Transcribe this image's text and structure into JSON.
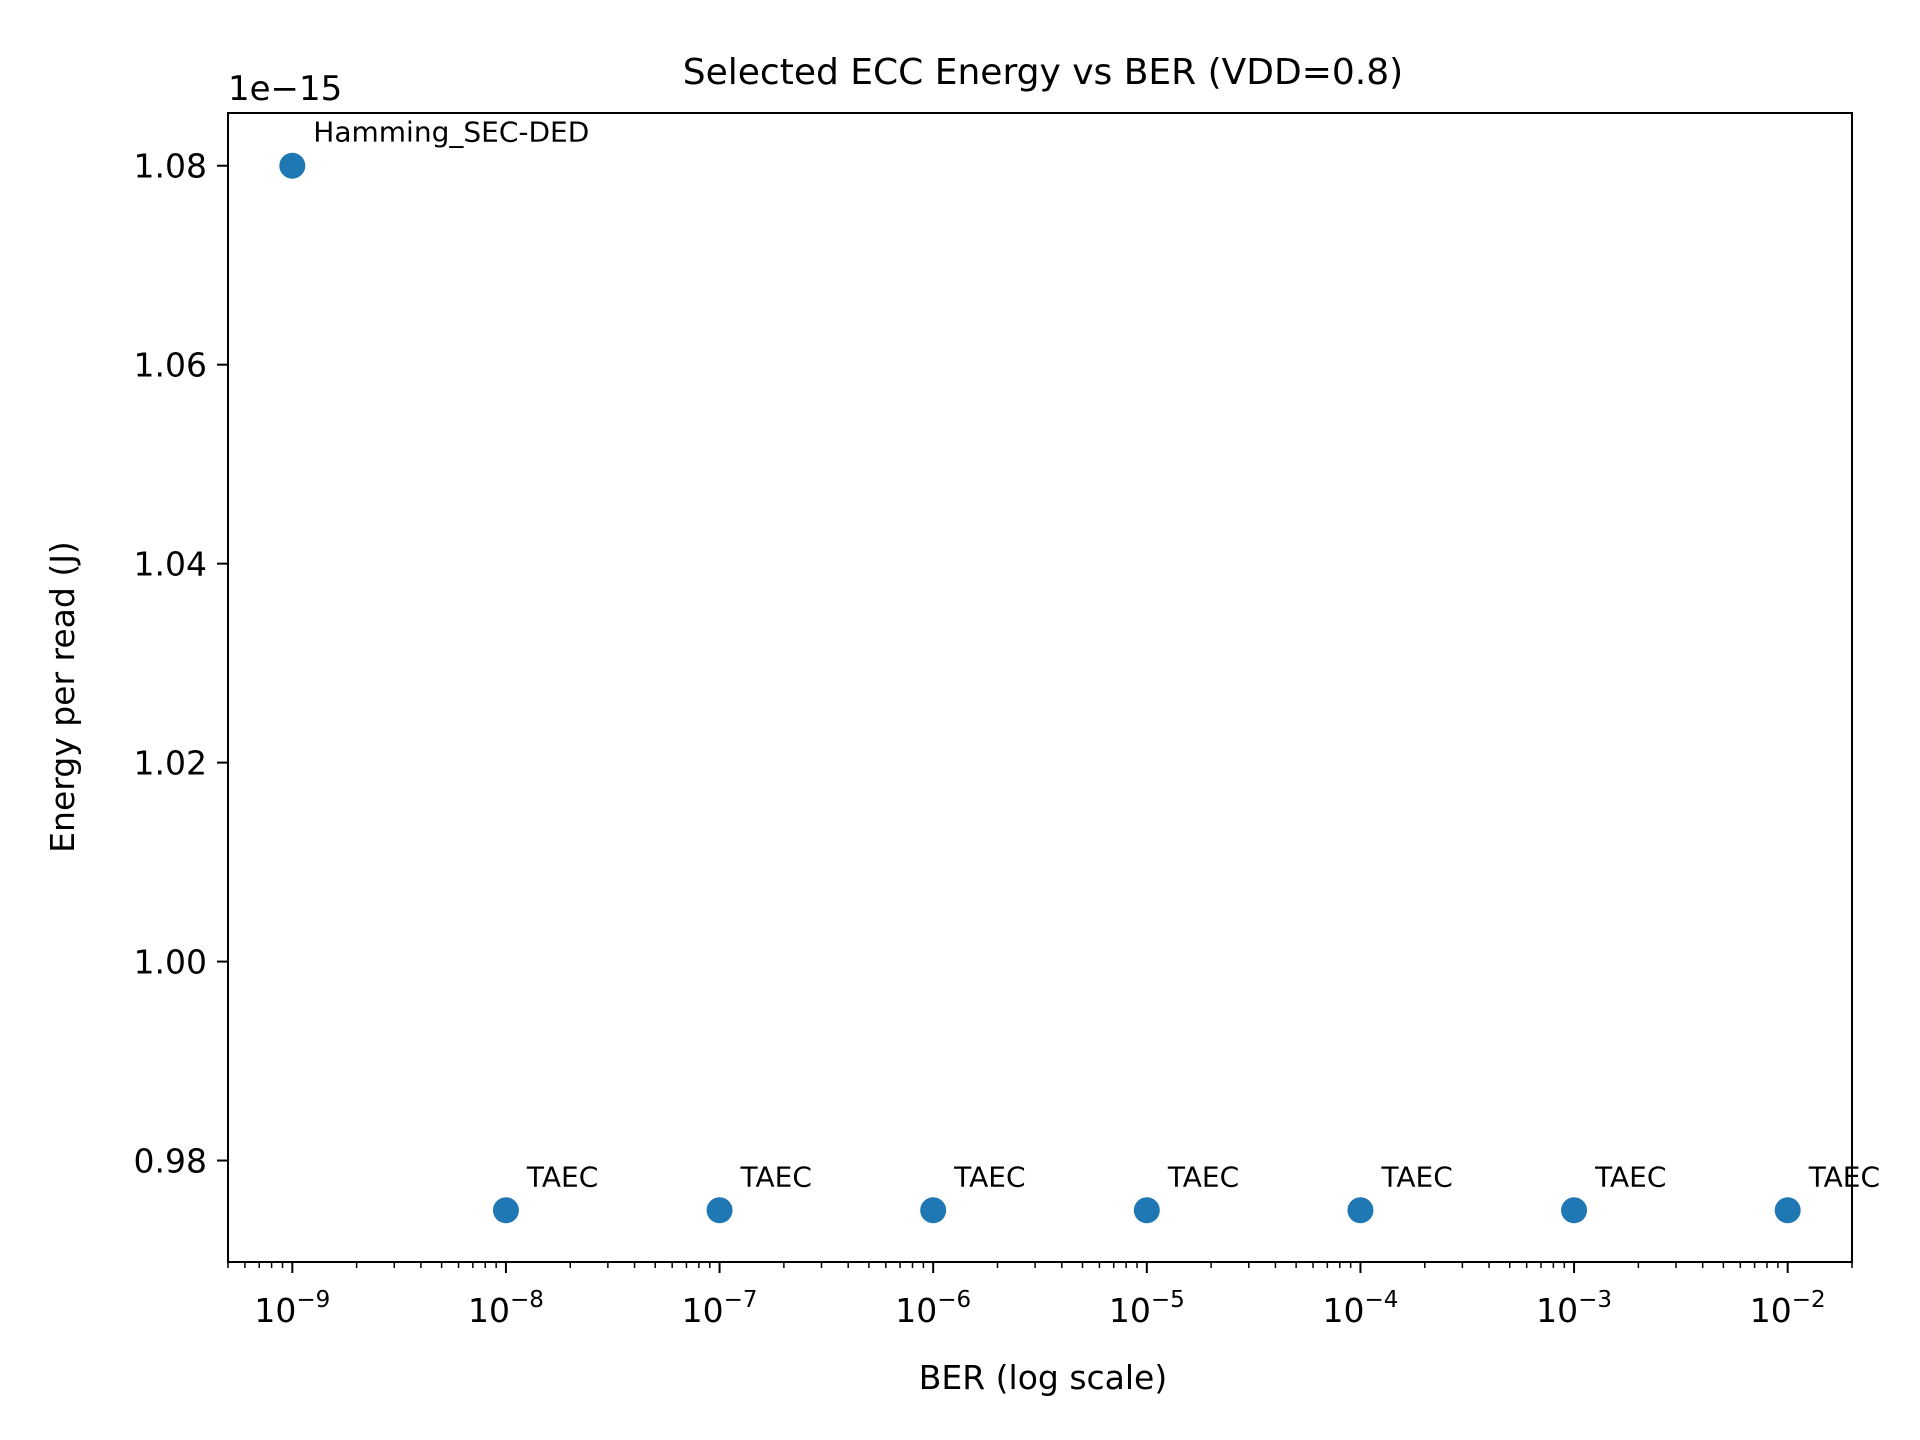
{
  "chart_data": {
    "type": "scatter",
    "title": "Selected ECC Energy vs BER (VDD=0.8)",
    "xlabel": "BER (log scale)",
    "ylabel": "Energy per read (J)",
    "xscale": "log",
    "xlim": [
      5e-10,
      0.02
    ],
    "ylim": [
      9.698e-16,
      1.0853e-15
    ],
    "x_ticks": [
      1e-09,
      1e-08,
      1e-07,
      1e-06,
      1e-05,
      0.0001,
      0.001,
      0.01
    ],
    "x_tick_labels": [
      {
        "base": "10",
        "exp": "−9"
      },
      {
        "base": "10",
        "exp": "−8"
      },
      {
        "base": "10",
        "exp": "−7"
      },
      {
        "base": "10",
        "exp": "−6"
      },
      {
        "base": "10",
        "exp": "−5"
      },
      {
        "base": "10",
        "exp": "−4"
      },
      {
        "base": "10",
        "exp": "−3"
      },
      {
        "base": "10",
        "exp": "−2"
      }
    ],
    "y_ticks": [
      0.98,
      1.0,
      1.02,
      1.04,
      1.06,
      1.08
    ],
    "y_tick_labels": [
      "0.98",
      "1.00",
      "1.02",
      "1.04",
      "1.06",
      "1.08"
    ],
    "y_offset_label": "1e−15",
    "grid": false,
    "marker_color": "#1f77b4",
    "points": [
      {
        "x": 1e-09,
        "y": 1.08e-15,
        "label": "Hamming_SEC-DED"
      },
      {
        "x": 1e-08,
        "y": 9.75e-16,
        "label": "TAEC"
      },
      {
        "x": 1e-07,
        "y": 9.75e-16,
        "label": "TAEC"
      },
      {
        "x": 1e-06,
        "y": 9.75e-16,
        "label": "TAEC"
      },
      {
        "x": 1e-05,
        "y": 9.75e-16,
        "label": "TAEC"
      },
      {
        "x": 0.0001,
        "y": 9.75e-16,
        "label": "TAEC"
      },
      {
        "x": 0.001,
        "y": 9.75e-16,
        "label": "TAEC"
      },
      {
        "x": 0.01,
        "y": 9.75e-16,
        "label": "TAEC"
      }
    ]
  }
}
